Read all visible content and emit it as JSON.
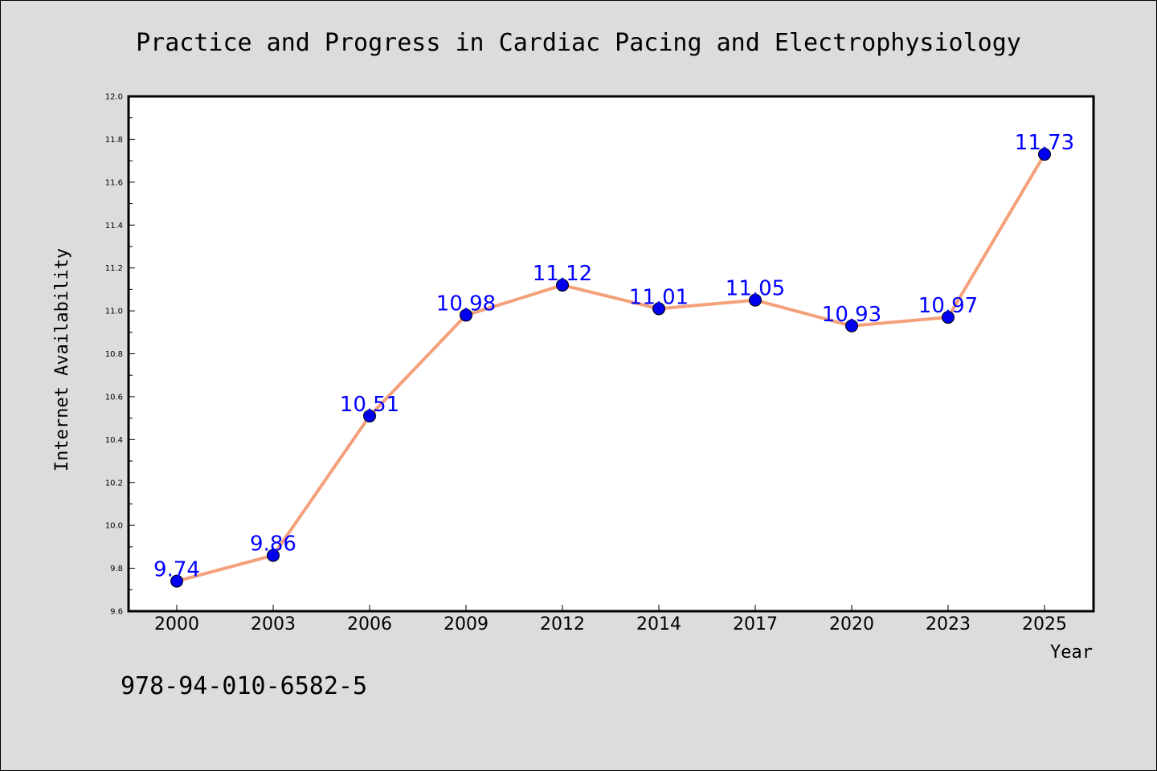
{
  "chart_data": {
    "type": "line",
    "title": "Practice and Progress in Cardiac Pacing and Electrophysiology",
    "xlabel": "Year",
    "ylabel": "Internet Availability",
    "categories": [
      "2000",
      "2003",
      "2006",
      "2009",
      "2012",
      "2014",
      "2017",
      "2020",
      "2023",
      "2025"
    ],
    "values": [
      9.74,
      9.86,
      10.51,
      10.98,
      11.12,
      11.01,
      11.05,
      10.93,
      10.97,
      11.73
    ],
    "data_labels": [
      "9.74",
      "9.86",
      "10.51",
      "10.98",
      "11.12",
      "11.01",
      "11.05",
      "10.93",
      "10.97",
      "11.73"
    ],
    "ylim": [
      9.6,
      12.0
    ],
    "yticks": [
      "9.6",
      "9.8",
      "10.0",
      "10.2",
      "10.4",
      "10.6",
      "10.8",
      "11.0",
      "11.2",
      "11.4",
      "11.6",
      "11.8",
      "12.0"
    ],
    "grid": false,
    "legend": "none",
    "colors": {
      "line": "#f4a07a",
      "marker": "#0000ee",
      "data_label": "#0000ff",
      "background": "#dcdcdc",
      "plot_background": "#ffffff"
    }
  },
  "footer_note": "978-94-010-6582-5"
}
